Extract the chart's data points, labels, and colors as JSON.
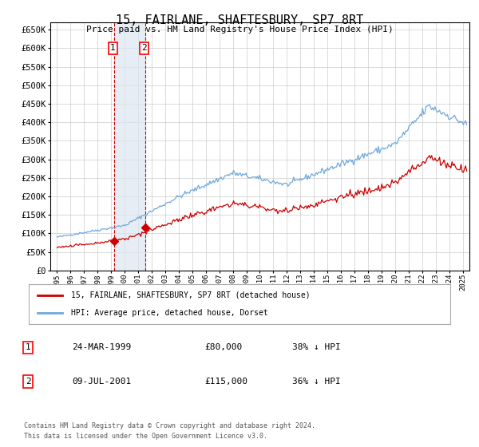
{
  "title": "15, FAIRLANE, SHAFTESBURY, SP7 8RT",
  "subtitle": "Price paid vs. HM Land Registry's House Price Index (HPI)",
  "legend_line1": "15, FAIRLANE, SHAFTESBURY, SP7 8RT (detached house)",
  "legend_line2": "HPI: Average price, detached house, Dorset",
  "footnote1": "Contains HM Land Registry data © Crown copyright and database right 2024.",
  "footnote2": "This data is licensed under the Open Government Licence v3.0.",
  "table": [
    {
      "num": 1,
      "date": "24-MAR-1999",
      "price": "£80,000",
      "hpi": "38% ↓ HPI"
    },
    {
      "num": 2,
      "date": "09-JUL-2001",
      "price": "£115,000",
      "hpi": "36% ↓ HPI"
    }
  ],
  "sale1_year": 1999.23,
  "sale1_price": 80000,
  "sale2_year": 2001.52,
  "sale2_price": 115000,
  "shade_x1": 1999.23,
  "shade_x2": 2001.52,
  "hpi_color": "#6fa8dc",
  "price_color": "#cc0000",
  "sale_dot_color": "#cc0000",
  "bg_color": "#ffffff",
  "grid_color": "#cccccc",
  "shade_color": "#dce6f1",
  "vline_color": "#cc0000",
  "ylim_max": 670000,
  "ylim_min": 0,
  "xlim_min": 1994.5,
  "xlim_max": 2025.5,
  "yticks": [
    0,
    50000,
    100000,
    150000,
    200000,
    250000,
    300000,
    350000,
    400000,
    450000,
    500000,
    550000,
    600000,
    650000
  ],
  "xticks": [
    1995,
    1996,
    1997,
    1998,
    1999,
    2000,
    2001,
    2002,
    2003,
    2004,
    2005,
    2006,
    2007,
    2008,
    2009,
    2010,
    2011,
    2012,
    2013,
    2014,
    2015,
    2016,
    2017,
    2018,
    2019,
    2020,
    2021,
    2022,
    2023,
    2024,
    2025
  ]
}
